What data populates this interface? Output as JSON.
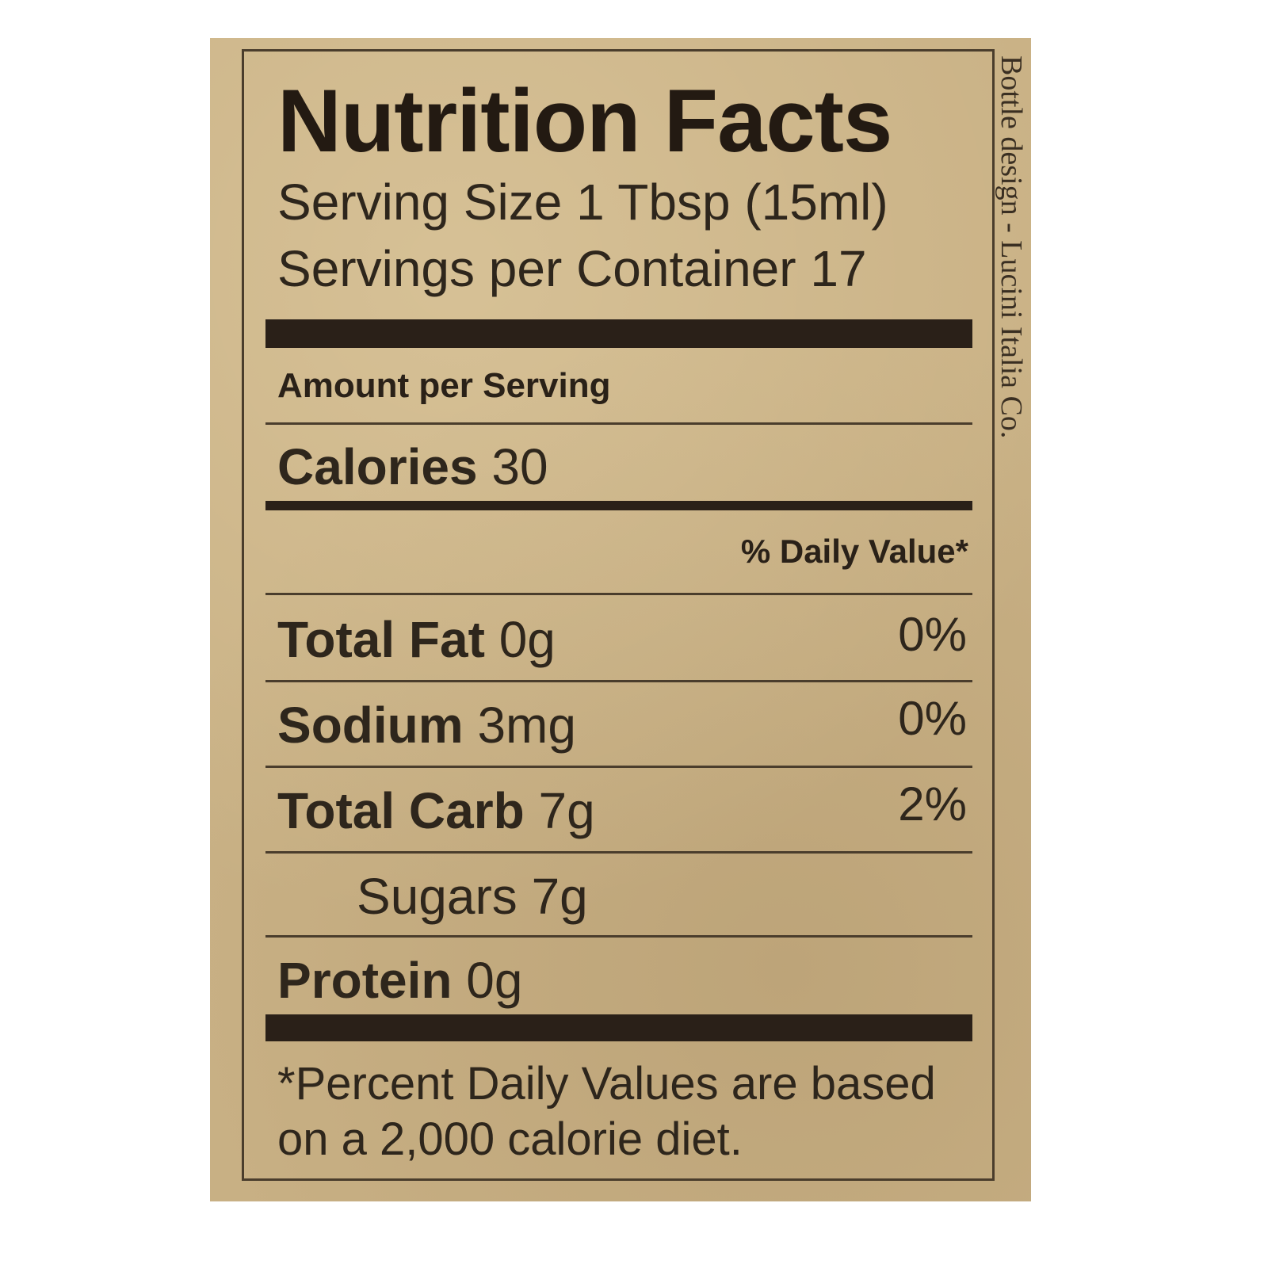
{
  "label": {
    "title": "Nutrition Facts",
    "serving_size": "Serving Size 1 Tbsp (15ml)",
    "servings_per_container": "Servings per Container 17",
    "amount_per_serving": "Amount per Serving",
    "calories_label": "Calories",
    "calories_value": "30",
    "daily_value_header": "% Daily Value*",
    "nutrients": [
      {
        "name": "Total Fat",
        "amount": "0g",
        "dv": "0%"
      },
      {
        "name": "Sodium",
        "amount": "3mg",
        "dv": "0%"
      },
      {
        "name": "Total Carb",
        "amount": "7g",
        "dv": "2%"
      },
      {
        "name": "Sugars",
        "amount": "7g",
        "dv": ""
      },
      {
        "name": "Protein",
        "amount": "0g",
        "dv": ""
      }
    ],
    "footnote_line1": "*Percent Daily Values are based",
    "footnote_line2": "on a 2,000 calorie diet."
  },
  "side_text": "Bottle design - Lucini Italia Co."
}
